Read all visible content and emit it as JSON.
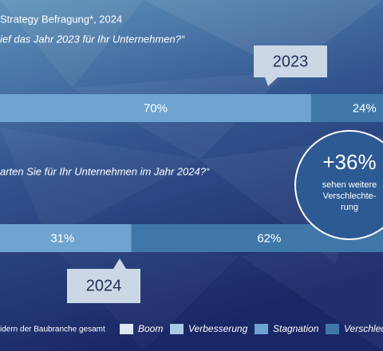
{
  "chart_data": {
    "type": "bar",
    "orientation": "horizontal",
    "stacked": true,
    "title": "Strategy Befragung*, 2024",
    "questions": [
      "ief das Jahr 2023 für Ihr Unternehmen?“",
      "arten Sie für Ihr Unternehmen im Jahr 2024?“"
    ],
    "categories": [
      "2023",
      "2024"
    ],
    "series": [
      {
        "name": "Boom",
        "color": "#dce8f3",
        "values": [
          null,
          null
        ],
        "value_labels": [
          null,
          null
        ]
      },
      {
        "name": "Verbesserung",
        "color": "#a9c9e6",
        "values": [
          null,
          null
        ],
        "value_labels": [
          null,
          null
        ]
      },
      {
        "name": "Stagnation",
        "color": "#6fa3d0",
        "values": [
          70,
          31
        ],
        "value_labels": [
          "70%",
          "31%"
        ]
      },
      {
        "name": "Verschlechterung",
        "color": "#3f78a8",
        "values": [
          24,
          62
        ],
        "value_labels": [
          "24%",
          "62%"
        ]
      }
    ],
    "annotation": {
      "label": "+36%",
      "lines": [
        "sehen weitere",
        "Verschlechte-",
        "rung"
      ]
    },
    "footnote": "idern der Baubranche gesamt"
  }
}
